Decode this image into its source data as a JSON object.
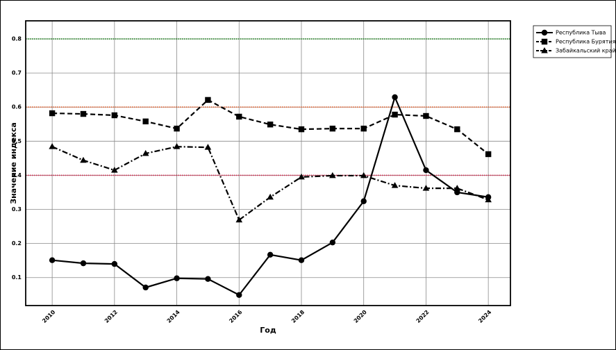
{
  "chart_data": {
    "type": "line",
    "x_label": "Год",
    "y_label": "Значение индекса",
    "x": [
      2010,
      2011,
      2012,
      2013,
      2014,
      2015,
      2016,
      2017,
      2018,
      2019,
      2020,
      2021,
      2022,
      2023,
      2024
    ],
    "series": [
      {
        "name": "Республика Тыва",
        "color": "#000000",
        "marker": "circle",
        "linestyle": "solid",
        "values": [
          0.151,
          0.142,
          0.14,
          0.071,
          0.098,
          0.096,
          0.049,
          0.167,
          0.151,
          0.203,
          0.324,
          0.629,
          0.415,
          0.35,
          0.336
        ]
      },
      {
        "name": "Республика Бурятия",
        "color": "#000000",
        "marker": "square",
        "linestyle": "dashed",
        "values": [
          0.582,
          0.58,
          0.576,
          0.558,
          0.537,
          0.621,
          0.572,
          0.549,
          0.535,
          0.537,
          0.537,
          0.578,
          0.574,
          0.535,
          0.462
        ]
      },
      {
        "name": "Забайкальский край",
        "color": "#000000",
        "marker": "triangle",
        "linestyle": "dashdot",
        "values": [
          0.484,
          0.444,
          0.415,
          0.464,
          0.484,
          0.482,
          0.269,
          0.336,
          0.395,
          0.399,
          0.399,
          0.37,
          0.362,
          0.362,
          0.328
        ]
      }
    ],
    "reference_lines": [
      {
        "value": 0.8,
        "color": "#1f8a1f"
      },
      {
        "value": 0.6,
        "color": "#e8602c"
      },
      {
        "value": 0.4,
        "color": "#d9244a"
      }
    ],
    "xlim": [
      2009.15,
      2024.71
    ],
    "ylim": [
      0.018,
      0.853
    ],
    "xticks": [
      2010,
      2012,
      2014,
      2016,
      2018,
      2020,
      2022,
      2024
    ],
    "yticks": [
      0.1,
      0.2,
      0.3,
      0.4,
      0.5,
      0.6,
      0.7,
      0.8
    ],
    "grid": true,
    "legend": "outside-upper-right"
  }
}
